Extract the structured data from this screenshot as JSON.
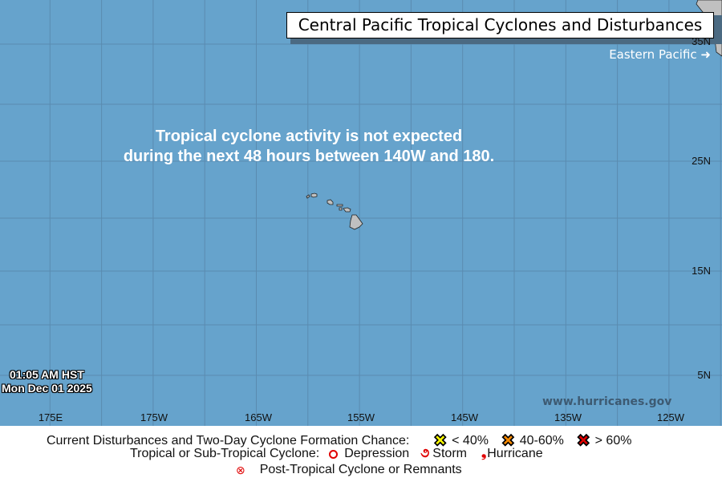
{
  "title": "Central Pacific Tropical Cyclones and Disturbances",
  "eastern_pacific_link": "Eastern Pacific",
  "message_line1": "Tropical cyclone activity is not expected",
  "message_line2": "during the next 48 hours between 140W and 180.",
  "timestamp": {
    "time": "01:05 AM HST",
    "date": "Mon Dec 01 2025"
  },
  "website": "www.hurricanes.gov",
  "longitude_labels": [
    "175E",
    "175W",
    "165W",
    "155W",
    "145W",
    "135W",
    "125W"
  ],
  "latitude_labels": [
    "35N",
    "25N",
    "15N",
    "5N"
  ],
  "legend": {
    "disturbances_label": "Current Disturbances and Two-Day Cyclone Formation Chance:",
    "low": "< 40%",
    "medium": "40-60%",
    "high": "> 60%",
    "cyclone_label": "Tropical or Sub-Tropical Cyclone:",
    "depression": "Depression",
    "storm": "Storm",
    "hurricane": "Hurricane",
    "post_tropical": "Post-Tropical Cyclone or Remnants"
  },
  "colors": {
    "ocean": "#66a3cc",
    "land": "#c0c0c0",
    "low": "#ffff00",
    "medium": "#ff8c00",
    "high": "#e00000",
    "cyclone": "#e00000"
  }
}
